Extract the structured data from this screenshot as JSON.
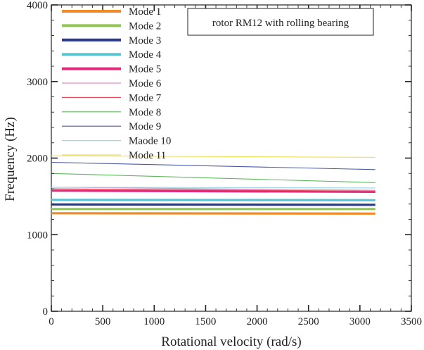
{
  "chart_data": {
    "type": "line",
    "title": "",
    "annotation": "rotor RM12  with rolling bearing",
    "xlabel": "Rotational velocity (rad/s)",
    "ylabel": "Frequency (Hz)",
    "xlim": [
      0,
      3500
    ],
    "ylim": [
      0,
      4000
    ],
    "xticks": [
      0,
      500,
      1000,
      1500,
      2000,
      2500,
      3000,
      3500
    ],
    "yticks": [
      0,
      1000,
      2000,
      3000,
      4000
    ],
    "legend_position": "top-left",
    "series": [
      {
        "name": "Mode 1",
        "color": "#f08c28",
        "weight": "thick",
        "x": [
          0,
          3150
        ],
        "y": [
          1280,
          1275
        ]
      },
      {
        "name": "Mode 2",
        "color": "#8fc850",
        "weight": "thick",
        "x": [
          0,
          3150
        ],
        "y": [
          1335,
          1335
        ]
      },
      {
        "name": "Mode 3",
        "color": "#2a3b8f",
        "weight": "thick",
        "x": [
          0,
          3150
        ],
        "y": [
          1395,
          1390
        ]
      },
      {
        "name": "Mode 4",
        "color": "#5bc4d4",
        "weight": "thick",
        "x": [
          0,
          3150
        ],
        "y": [
          1455,
          1450
        ]
      },
      {
        "name": "Mode 5",
        "color": "#e02a7a",
        "weight": "thick",
        "x": [
          0,
          3150
        ],
        "y": [
          1575,
          1560
        ]
      },
      {
        "name": "Mode 6",
        "color": "#e88ac0",
        "weight": "thin",
        "x": [
          0,
          3150
        ],
        "y": [
          1620,
          1580
        ]
      },
      {
        "name": "Mode 7",
        "color": "#e84a5a",
        "weight": "thin",
        "x": [
          0,
          3150
        ],
        "y": [
          1600,
          1570
        ]
      },
      {
        "name": "Mode 8",
        "color": "#5cb85c",
        "weight": "thin",
        "x": [
          0,
          3150
        ],
        "y": [
          1800,
          1680
        ]
      },
      {
        "name": "Mode 9",
        "color": "#4a5aa8",
        "weight": "thin",
        "x": [
          0,
          3150
        ],
        "y": [
          1945,
          1850
        ]
      },
      {
        "name": "Maode 10",
        "color": "#9ad8e6",
        "weight": "thin",
        "x": [
          0,
          3150
        ],
        "y": [
          1620,
          1610
        ]
      },
      {
        "name": "Mode 11",
        "color": "#f0e050",
        "weight": "thin",
        "x": [
          0,
          3150
        ],
        "y": [
          2030,
          2010
        ]
      }
    ]
  }
}
